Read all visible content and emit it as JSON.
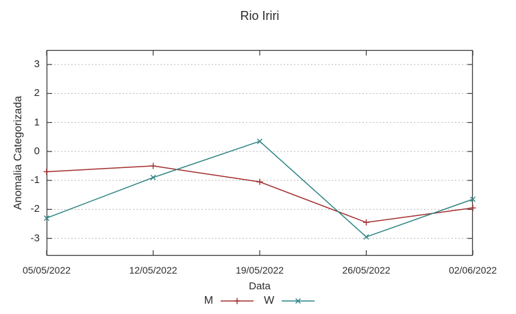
{
  "chart_data": {
    "type": "line",
    "title": "Rio Iriri",
    "xlabel": "Data",
    "ylabel": "Anomalia Categorizada",
    "categories": [
      "05/05/2022",
      "12/05/2022",
      "19/05/2022",
      "26/05/2022",
      "02/06/2022"
    ],
    "yticks": [
      3,
      2,
      1,
      0,
      -1,
      -2,
      -3
    ],
    "ylim": [
      -3.6,
      3.5
    ],
    "grid": "horizontal-dashed",
    "legend_position": "bottom-center",
    "axis_color": "#3a3a3a",
    "grid_color": "#b8b8b8",
    "text_color": "#2b2b2b",
    "series": [
      {
        "name": "M",
        "color": "#a32f2f",
        "marker": "plus",
        "values": [
          -0.7,
          -0.5,
          -1.05,
          -2.45,
          -1.95
        ]
      },
      {
        "name": "W",
        "color": "#2e8484",
        "marker": "cross",
        "values": [
          -2.3,
          -0.9,
          0.35,
          -2.95,
          -1.65
        ]
      }
    ]
  }
}
